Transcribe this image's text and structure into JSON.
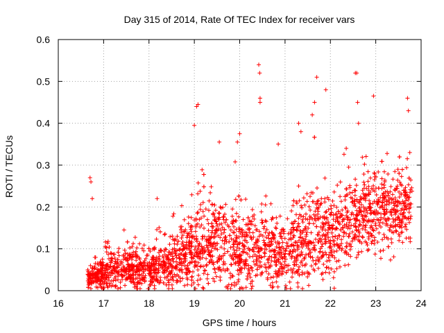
{
  "chart_data": {
    "type": "scatter",
    "title": "Day 315 of 2014, Rate Of TEC Index for receiver vars",
    "xlabel": "GPS time / hours",
    "ylabel": "ROTI / TECUs",
    "xlim": [
      16,
      24
    ],
    "ylim": [
      0,
      0.6
    ],
    "xticks": [
      "16",
      "17",
      "18",
      "19",
      "20",
      "21",
      "22",
      "23",
      "24"
    ],
    "yticks": [
      "0",
      "0.1",
      "0.2",
      "0.3",
      "0.4",
      "0.5",
      "0.6"
    ],
    "grid": true,
    "marker": "+",
    "color": "#ff0000",
    "series": [
      {
        "name": "vars",
        "density_profile": [
          {
            "x": 16.75,
            "mean": 0.03,
            "spread": 0.03
          },
          {
            "x": 17.0,
            "mean": 0.04,
            "spread": 0.04
          },
          {
            "x": 17.5,
            "mean": 0.05,
            "spread": 0.05
          },
          {
            "x": 18.0,
            "mean": 0.05,
            "spread": 0.05
          },
          {
            "x": 18.5,
            "mean": 0.06,
            "spread": 0.06
          },
          {
            "x": 19.0,
            "mean": 0.1,
            "spread": 0.1
          },
          {
            "x": 19.5,
            "mean": 0.12,
            "spread": 0.12
          },
          {
            "x": 20.0,
            "mean": 0.09,
            "spread": 0.1
          },
          {
            "x": 20.5,
            "mean": 0.1,
            "spread": 0.1
          },
          {
            "x": 21.0,
            "mean": 0.08,
            "spread": 0.08
          },
          {
            "x": 21.5,
            "mean": 0.14,
            "spread": 0.12
          },
          {
            "x": 22.0,
            "mean": 0.13,
            "spread": 0.11
          },
          {
            "x": 22.5,
            "mean": 0.17,
            "spread": 0.1
          },
          {
            "x": 23.0,
            "mean": 0.2,
            "spread": 0.1
          },
          {
            "x": 23.5,
            "mean": 0.18,
            "spread": 0.09
          },
          {
            "x": 23.75,
            "mean": 0.2,
            "spread": 0.1
          }
        ],
        "x_range": [
          16.65,
          23.8
        ],
        "notable_points": [
          {
            "x": 16.7,
            "y": 0.27
          },
          {
            "x": 16.72,
            "y": 0.26
          },
          {
            "x": 16.75,
            "y": 0.22
          },
          {
            "x": 19.05,
            "y": 0.44
          },
          {
            "x": 19.08,
            "y": 0.445
          },
          {
            "x": 19.0,
            "y": 0.395
          },
          {
            "x": 20.42,
            "y": 0.54
          },
          {
            "x": 20.44,
            "y": 0.52
          },
          {
            "x": 20.45,
            "y": 0.46
          },
          {
            "x": 20.45,
            "y": 0.45
          },
          {
            "x": 21.7,
            "y": 0.51
          },
          {
            "x": 21.9,
            "y": 0.48
          },
          {
            "x": 22.55,
            "y": 0.52
          },
          {
            "x": 22.58,
            "y": 0.52
          },
          {
            "x": 22.6,
            "y": 0.45
          },
          {
            "x": 22.62,
            "y": 0.4
          },
          {
            "x": 22.95,
            "y": 0.465
          },
          {
            "x": 23.7,
            "y": 0.46
          },
          {
            "x": 23.72,
            "y": 0.43
          },
          {
            "x": 23.75,
            "y": 0.33
          },
          {
            "x": 21.3,
            "y": 0.4
          },
          {
            "x": 21.35,
            "y": 0.38
          },
          {
            "x": 21.65,
            "y": 0.45
          },
          {
            "x": 21.6,
            "y": 0.42
          },
          {
            "x": 20.0,
            "y": 0.375
          },
          {
            "x": 19.95,
            "y": 0.355
          },
          {
            "x": 19.55,
            "y": 0.355
          },
          {
            "x": 18.18,
            "y": 0.22
          },
          {
            "x": 17.45,
            "y": 0.145
          },
          {
            "x": 22.35,
            "y": 0.34
          },
          {
            "x": 20.85,
            "y": 0.35
          }
        ]
      }
    ]
  }
}
